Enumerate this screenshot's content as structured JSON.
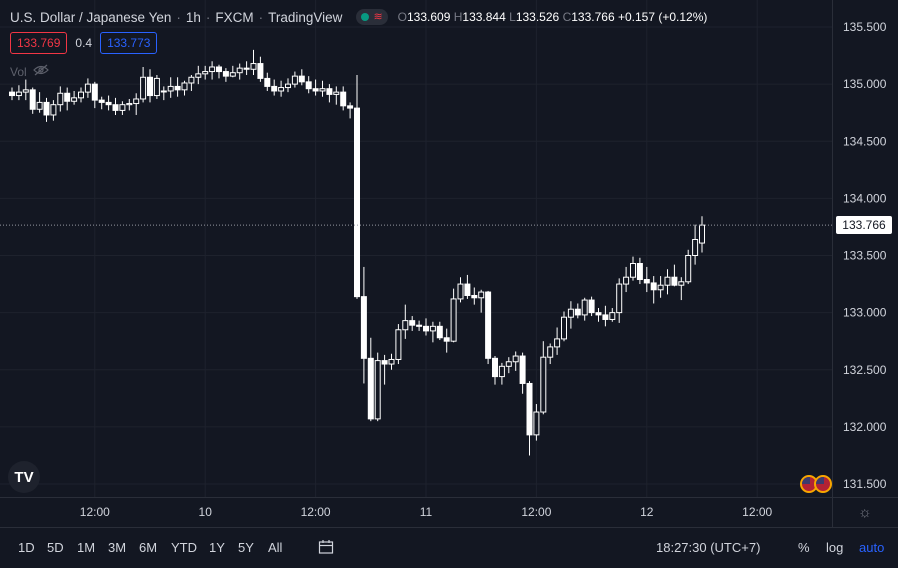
{
  "header": {
    "symbol_name": "U.S. Dollar / Japanese Yen",
    "interval": "1h",
    "exchange": "FXCM",
    "source": "TradingView",
    "ohlc": {
      "o_label": "O",
      "o": "133.609",
      "h_label": "H",
      "h": "133.844",
      "l_label": "L",
      "l": "133.526",
      "c_label": "C",
      "c": "133.766",
      "change": "+0.157 (+0.12%)"
    }
  },
  "quote": {
    "sell": "133.769",
    "spread": "0.4",
    "buy": "133.773"
  },
  "volume_label": "Vol",
  "logo_text": "TV",
  "current_price_tag": "133.766",
  "bottom_bar": {
    "timeframes": [
      "1D",
      "5D",
      "1M",
      "3M",
      "6M",
      "YTD",
      "1Y",
      "5Y",
      "All"
    ],
    "clock": "18:27:30 (UTC+7)",
    "percent": "%",
    "log": "log",
    "auto": "auto"
  },
  "colors": {
    "background": "#131722",
    "candle": "#ffffff",
    "accent": "#2962ff",
    "sell": "#f23645",
    "axis_text": "#d1d4dc"
  },
  "chart_data": {
    "type": "candlestick",
    "title": "U.S. Dollar / Japanese Yen · 1h · FXCM",
    "ylim": [
      131.42,
      135.62
    ],
    "y_ticks": [
      "135.500",
      "135.000",
      "134.500",
      "134.000",
      "133.500",
      "133.000",
      "132.500",
      "132.000",
      "131.500"
    ],
    "y_tick_values": [
      135.5,
      135.0,
      134.5,
      134.0,
      133.5,
      133.0,
      132.5,
      132.0,
      131.5
    ],
    "x_ticks": [
      "12:00",
      "10",
      "12:00",
      "11",
      "12:00",
      "12",
      "12:00"
    ],
    "x_tick_bar_index": [
      12,
      28,
      44,
      60,
      76,
      92,
      108
    ],
    "current_price": 133.766,
    "ohlc": [
      [
        134.93,
        134.97,
        134.86,
        134.9
      ],
      [
        134.9,
        134.99,
        134.86,
        134.93
      ],
      [
        134.93,
        135.04,
        134.86,
        134.95
      ],
      [
        134.95,
        134.97,
        134.74,
        134.78
      ],
      [
        134.78,
        134.93,
        134.75,
        134.84
      ],
      [
        134.84,
        134.88,
        134.67,
        134.73
      ],
      [
        134.73,
        134.86,
        134.68,
        134.82
      ],
      [
        134.82,
        134.98,
        134.76,
        134.92
      ],
      [
        134.92,
        134.97,
        134.77,
        134.85
      ],
      [
        134.85,
        134.94,
        134.82,
        134.88
      ],
      [
        134.88,
        134.97,
        134.84,
        134.93
      ],
      [
        134.93,
        135.05,
        134.88,
        135.0
      ],
      [
        135.0,
        135.02,
        134.79,
        134.86
      ],
      [
        134.86,
        134.89,
        134.78,
        134.84
      ],
      [
        134.84,
        134.9,
        134.77,
        134.82
      ],
      [
        134.82,
        134.88,
        134.73,
        134.77
      ],
      [
        134.77,
        134.85,
        134.73,
        134.82
      ],
      [
        134.82,
        134.87,
        134.77,
        134.83
      ],
      [
        134.83,
        134.92,
        134.73,
        134.87
      ],
      [
        134.87,
        135.15,
        134.84,
        135.06
      ],
      [
        135.06,
        135.13,
        134.84,
        134.9
      ],
      [
        134.9,
        135.08,
        134.87,
        135.05
      ],
      [
        134.94,
        134.98,
        134.86,
        134.94
      ],
      [
        134.94,
        135.06,
        134.88,
        134.98
      ],
      [
        134.98,
        135.06,
        134.89,
        134.95
      ],
      [
        134.95,
        135.03,
        134.9,
        135.01
      ],
      [
        135.01,
        135.08,
        134.94,
        135.06
      ],
      [
        135.06,
        135.16,
        135.0,
        135.09
      ],
      [
        135.09,
        135.16,
        135.04,
        135.11
      ],
      [
        135.11,
        135.2,
        135.04,
        135.15
      ],
      [
        135.15,
        135.17,
        135.05,
        135.11
      ],
      [
        135.11,
        135.14,
        135.02,
        135.07
      ],
      [
        135.07,
        135.16,
        135.06,
        135.1
      ],
      [
        135.1,
        135.18,
        135.04,
        135.14
      ],
      [
        135.14,
        135.2,
        135.08,
        135.13
      ],
      [
        135.13,
        135.3,
        135.08,
        135.18
      ],
      [
        135.18,
        135.24,
        135.02,
        135.05
      ],
      [
        135.05,
        135.1,
        134.94,
        134.98
      ],
      [
        134.98,
        135.04,
        134.9,
        134.94
      ],
      [
        134.94,
        135.03,
        134.89,
        134.97
      ],
      [
        134.97,
        135.05,
        134.93,
        135.0
      ],
      [
        135.0,
        135.11,
        134.97,
        135.07
      ],
      [
        135.07,
        135.13,
        134.99,
        135.02
      ],
      [
        135.02,
        135.07,
        134.92,
        134.96
      ],
      [
        134.96,
        135.04,
        134.9,
        134.94
      ],
      [
        134.94,
        135.03,
        134.89,
        134.96
      ],
      [
        134.96,
        135.0,
        134.84,
        134.91
      ],
      [
        134.91,
        134.98,
        134.82,
        134.93
      ],
      [
        134.93,
        134.98,
        134.77,
        134.81
      ],
      [
        134.81,
        134.84,
        134.7,
        134.79
      ],
      [
        134.79,
        135.08,
        133.12,
        133.14
      ],
      [
        133.14,
        133.4,
        132.38,
        132.6
      ],
      [
        132.6,
        132.78,
        132.05,
        132.07
      ],
      [
        132.07,
        132.65,
        132.05,
        132.58
      ],
      [
        132.58,
        132.63,
        132.37,
        132.55
      ],
      [
        132.55,
        132.64,
        132.5,
        132.59
      ],
      [
        132.59,
        132.9,
        132.55,
        132.85
      ],
      [
        132.85,
        133.07,
        132.77,
        132.93
      ],
      [
        132.93,
        132.97,
        132.84,
        132.89
      ],
      [
        132.89,
        132.93,
        132.84,
        132.88
      ],
      [
        132.88,
        132.95,
        132.8,
        132.84
      ],
      [
        132.84,
        132.92,
        132.74,
        132.88
      ],
      [
        132.88,
        132.92,
        132.76,
        132.78
      ],
      [
        132.78,
        132.86,
        132.65,
        132.75
      ],
      [
        132.75,
        133.21,
        132.74,
        133.12
      ],
      [
        133.12,
        133.31,
        133.09,
        133.25
      ],
      [
        133.25,
        133.33,
        133.12,
        133.15
      ],
      [
        133.15,
        133.22,
        133.07,
        133.13
      ],
      [
        133.13,
        133.2,
        133.0,
        133.18
      ],
      [
        133.18,
        133.19,
        132.55,
        132.6
      ],
      [
        132.6,
        132.62,
        132.37,
        132.44
      ],
      [
        132.44,
        132.56,
        132.37,
        132.53
      ],
      [
        132.53,
        132.61,
        132.47,
        132.57
      ],
      [
        132.57,
        132.66,
        132.49,
        132.62
      ],
      [
        132.62,
        132.65,
        132.29,
        132.38
      ],
      [
        132.38,
        132.4,
        131.75,
        131.93
      ],
      [
        131.93,
        132.2,
        131.88,
        132.13
      ],
      [
        132.13,
        132.75,
        132.11,
        132.61
      ],
      [
        132.61,
        132.73,
        132.55,
        132.7
      ],
      [
        132.7,
        132.87,
        132.63,
        132.77
      ],
      [
        132.77,
        133.01,
        132.75,
        132.96
      ],
      [
        132.96,
        133.1,
        132.86,
        133.03
      ],
      [
        133.03,
        133.08,
        132.95,
        132.98
      ],
      [
        132.98,
        133.13,
        132.93,
        133.11
      ],
      [
        133.11,
        133.14,
        132.97,
        133.0
      ],
      [
        133.0,
        133.04,
        132.92,
        132.98
      ],
      [
        132.98,
        133.06,
        132.88,
        132.94
      ],
      [
        132.94,
        133.04,
        132.92,
        133.0
      ],
      [
        133.0,
        133.3,
        132.91,
        133.25
      ],
      [
        133.25,
        133.4,
        133.18,
        133.31
      ],
      [
        133.31,
        133.49,
        133.28,
        133.43
      ],
      [
        133.43,
        133.48,
        133.25,
        133.29
      ],
      [
        133.29,
        133.4,
        133.18,
        133.26
      ],
      [
        133.26,
        133.32,
        133.08,
        133.2
      ],
      [
        133.2,
        133.32,
        133.13,
        133.24
      ],
      [
        133.24,
        133.38,
        133.16,
        133.31
      ],
      [
        133.31,
        133.42,
        133.23,
        133.24
      ],
      [
        133.24,
        133.31,
        133.11,
        133.27
      ],
      [
        133.27,
        133.55,
        133.25,
        133.5
      ],
      [
        133.5,
        133.77,
        133.42,
        133.64
      ],
      [
        133.609,
        133.844,
        133.526,
        133.766
      ]
    ]
  }
}
